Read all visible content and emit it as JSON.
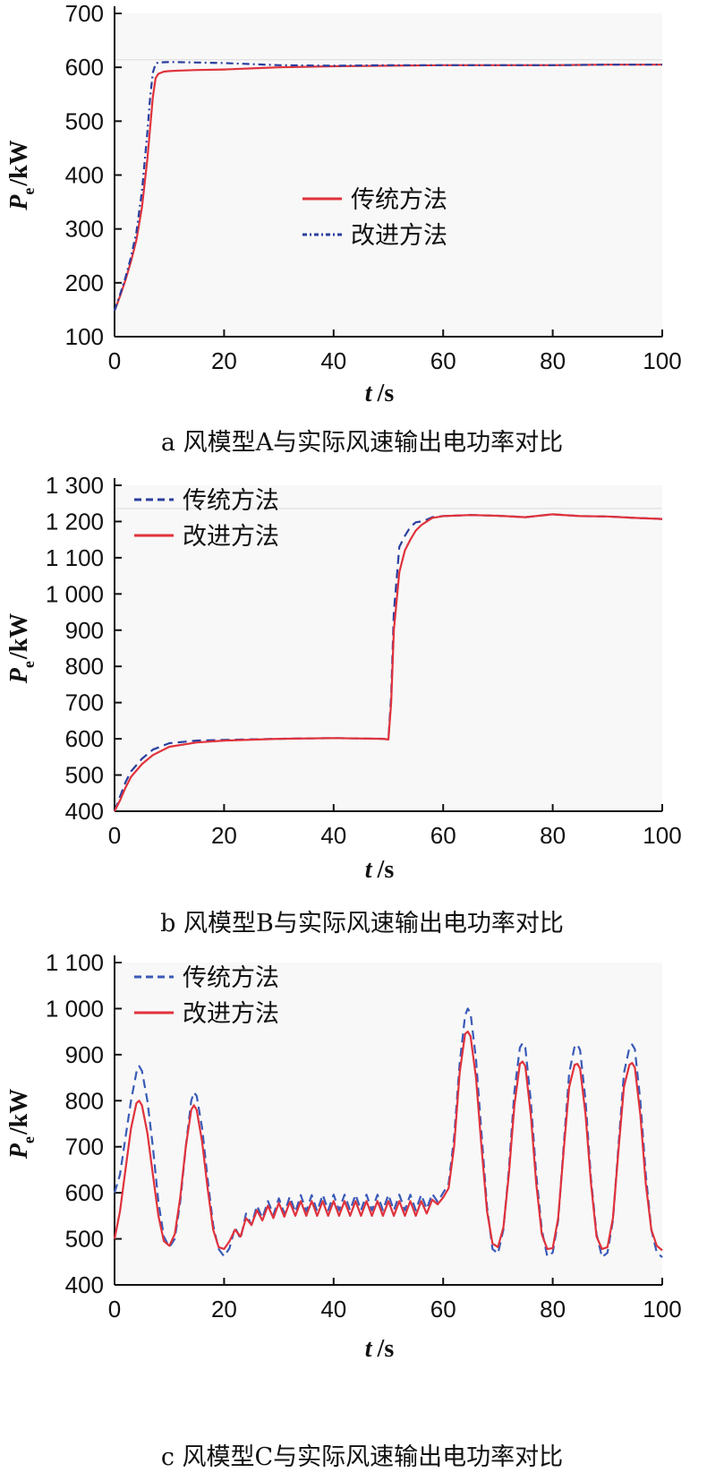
{
  "colors": {
    "traditional": "#e0323c",
    "improved": "#2b3f9e",
    "improved_c": "#3a5ab8",
    "plot_bg": "#f8f8f8",
    "ref_line": "#d9d9d9"
  },
  "charts": [
    {
      "caption": "a 风模型A与实际风速输出电功率对比",
      "chart_data": {
        "type": "line",
        "xlabel_main": "t",
        "xlabel_unit": "/s",
        "ylabel_main": "P",
        "ylabel_sub": "e",
        "ylabel_unit": "/kW",
        "xlim": [
          0,
          100
        ],
        "ylim": [
          100,
          700
        ],
        "xticks": [
          "0",
          "20",
          "40",
          "60",
          "80",
          "100"
        ],
        "yticks": [
          "100",
          "200",
          "300",
          "400",
          "500",
          "600",
          "700"
        ],
        "legend_position": "center",
        "series": [
          {
            "name": "传统方法",
            "style": "solid",
            "color": "#e0323c",
            "x": [
              0,
              1,
              2,
              3,
              4,
              5,
              6,
              7,
              7.5,
              8,
              9,
              10,
              12,
              15,
              20,
              25,
              30,
              40,
              50,
              60,
              70,
              80,
              90,
              100
            ],
            "y": [
              148,
              175,
              205,
              240,
              280,
              340,
              430,
              545,
              580,
              588,
              592,
              593,
              594,
              595,
              596,
              598,
              600,
              602,
              603,
              604,
              604,
              604,
              605,
              605
            ]
          },
          {
            "name": "改进方法",
            "style": "dashdot",
            "color": "#2b3f9e",
            "x": [
              0,
              1,
              2,
              3,
              4,
              5,
              6,
              6.5,
              7,
              7.5,
              8,
              10,
              15,
              20,
              25,
              30,
              40,
              50,
              60,
              70,
              80,
              90,
              100
            ],
            "y": [
              148,
              178,
              210,
              248,
              295,
              370,
              480,
              545,
              590,
              607,
              609,
              610,
              609,
              608,
              606,
              604,
              603,
              604,
              604,
              604,
              604,
              605,
              605
            ]
          }
        ]
      }
    },
    {
      "caption": "b 风模型B与实际风速输出电功率对比",
      "chart_data": {
        "type": "line",
        "xlabel_main": "t",
        "xlabel_unit": "/s",
        "ylabel_main": "P",
        "ylabel_sub": "e",
        "ylabel_unit": "/kW",
        "xlim": [
          0,
          100
        ],
        "ylim": [
          400,
          1300
        ],
        "xticks": [
          "0",
          "20",
          "40",
          "60",
          "80",
          "100"
        ],
        "yticks": [
          "400",
          "500",
          "600",
          "700",
          "800",
          "900",
          "1 000",
          "1 100",
          "1 200",
          "1 300"
        ],
        "legend_position": "top-left",
        "series": [
          {
            "name": "传统方法",
            "style": "dashed",
            "color": "#2b3f9e",
            "x": [
              0,
              1,
              2,
              3,
              5,
              7,
              10,
              15,
              20,
              30,
              40,
              49,
              50,
              50.5,
              51,
              52,
              53,
              54,
              55,
              56,
              57,
              58,
              60,
              65,
              70,
              75,
              80,
              85,
              90,
              95,
              100
            ],
            "y": [
              400,
              440,
              480,
              510,
              545,
              570,
              588,
              595,
              597,
              600,
              602,
              600,
              598,
              720,
              950,
              1130,
              1160,
              1185,
              1198,
              1200,
              1205,
              1212,
              1215,
              1218,
              1216,
              1212,
              1220,
              1215,
              1214,
              1210,
              1207
            ]
          },
          {
            "name": "改进方法",
            "style": "solid",
            "color": "#e0323c",
            "x": [
              0,
              1,
              2,
              3,
              5,
              7,
              10,
              15,
              20,
              30,
              40,
              49,
              50,
              50.5,
              51,
              52,
              53,
              54,
              55,
              56,
              57,
              58,
              60,
              65,
              70,
              75,
              80,
              85,
              90,
              95,
              100
            ],
            "y": [
              400,
              430,
              465,
              495,
              530,
              555,
              578,
              590,
              595,
              600,
              602,
              600,
              598,
              700,
              900,
              1060,
              1120,
              1150,
              1175,
              1190,
              1200,
              1210,
              1215,
              1218,
              1216,
              1212,
              1220,
              1215,
              1214,
              1210,
              1207
            ]
          }
        ]
      }
    },
    {
      "caption": "c 风模型C与实际风速输出电功率对比",
      "chart_data": {
        "type": "line",
        "xlabel_main": "t",
        "xlabel_unit": "/s",
        "ylabel_main": "P",
        "ylabel_sub": "e",
        "ylabel_unit": "/kW",
        "xlim": [
          0,
          100
        ],
        "ylim": [
          400,
          1100
        ],
        "xticks": [
          "0",
          "20",
          "40",
          "60",
          "80",
          "100"
        ],
        "yticks": [
          "400",
          "500",
          "600",
          "700",
          "800",
          "900",
          "1 000",
          "1 100"
        ],
        "legend_position": "top-left",
        "series": [
          {
            "name": "传统方法",
            "style": "dashed",
            "color": "#3a5ab8",
            "x": [
              0,
              1,
              2,
              3,
              4,
              4.5,
              5,
              6,
              7,
              8,
              9,
              10,
              11,
              12,
              13,
              14,
              14.5,
              15,
              16,
              17,
              18,
              19,
              20,
              21,
              22,
              23,
              24,
              25,
              26,
              27,
              28,
              29,
              30,
              31,
              32,
              33,
              34,
              35,
              36,
              37,
              38,
              39,
              40,
              41,
              42,
              43,
              44,
              45,
              46,
              47,
              48,
              49,
              50,
              51,
              52,
              53,
              54,
              55,
              56,
              57,
              58,
              59,
              60,
              61,
              62,
              63,
              64,
              64.5,
              65,
              66,
              67,
              68,
              69,
              70,
              71,
              72,
              73,
              74,
              74.5,
              75,
              76,
              77,
              78,
              79,
              80,
              81,
              82,
              83,
              84,
              84.5,
              85,
              86,
              87,
              88,
              89,
              90,
              91,
              92,
              93,
              94,
              94.5,
              95,
              96,
              97,
              98,
              99,
              100
            ],
            "y": [
              600,
              640,
              720,
              800,
              862,
              875,
              865,
              800,
              700,
              580,
              505,
              482,
              500,
              580,
              700,
              800,
              818,
              810,
              740,
              630,
              530,
              478,
              462,
              480,
              525,
              500,
              555,
              530,
              572,
              545,
              582,
              552,
              588,
              555,
              592,
              558,
              595,
              560,
              595,
              560,
              596,
              562,
              596,
              562,
              596,
              562,
              596,
              562,
              596,
              562,
              596,
              562,
              596,
              562,
              596,
              562,
              596,
              562,
              596,
              565,
              598,
              580,
              600,
              620,
              720,
              880,
              985,
              1000,
              990,
              890,
              730,
              570,
              478,
              468,
              520,
              650,
              820,
              915,
              925,
              915,
              800,
              640,
              520,
              462,
              470,
              540,
              700,
              860,
              918,
              922,
              910,
              800,
              630,
              510,
              460,
              470,
              540,
              700,
              860,
              915,
              922,
              912,
              800,
              640,
              520,
              470,
              460
            ]
          },
          {
            "name": "改进方法",
            "style": "solid",
            "color": "#e0323c",
            "x": [
              0,
              1,
              2,
              3,
              4,
              4.5,
              5,
              6,
              7,
              8,
              9,
              10,
              11,
              12,
              13,
              14,
              14.5,
              15,
              16,
              17,
              18,
              19,
              20,
              21,
              22,
              23,
              24,
              25,
              26,
              27,
              28,
              29,
              30,
              31,
              32,
              33,
              34,
              35,
              36,
              37,
              38,
              39,
              40,
              41,
              42,
              43,
              44,
              45,
              46,
              47,
              48,
              49,
              50,
              51,
              52,
              53,
              54,
              55,
              56,
              57,
              58,
              59,
              60,
              61,
              62,
              63,
              64,
              64.5,
              65,
              66,
              67,
              68,
              69,
              70,
              71,
              72,
              73,
              74,
              74.5,
              75,
              76,
              77,
              78,
              79,
              80,
              81,
              82,
              83,
              84,
              84.5,
              85,
              86,
              87,
              88,
              89,
              90,
              91,
              92,
              93,
              94,
              94.5,
              95,
              96,
              97,
              98,
              99,
              100
            ],
            "y": [
              500,
              560,
              650,
              740,
              795,
              800,
              790,
              730,
              640,
              550,
              495,
              485,
              510,
              590,
              700,
              780,
              790,
              780,
              710,
              610,
              520,
              482,
              478,
              495,
              520,
              505,
              545,
              530,
              562,
              540,
              572,
              545,
              578,
              548,
              580,
              550,
              582,
              550,
              582,
              550,
              582,
              550,
              582,
              550,
              582,
              550,
              582,
              550,
              582,
              550,
              582,
              550,
              582,
              550,
              582,
              550,
              582,
              550,
              582,
              555,
              585,
              575,
              590,
              610,
              700,
              860,
              945,
              950,
              940,
              850,
              700,
              560,
              490,
              482,
              525,
              640,
              790,
              880,
              885,
              875,
              770,
              620,
              510,
              478,
              480,
              545,
              690,
              830,
              878,
              880,
              870,
              770,
              620,
              505,
              478,
              482,
              545,
              690,
              830,
              878,
              882,
              872,
              770,
              620,
              520,
              485,
              475
            ]
          }
        ]
      }
    }
  ]
}
